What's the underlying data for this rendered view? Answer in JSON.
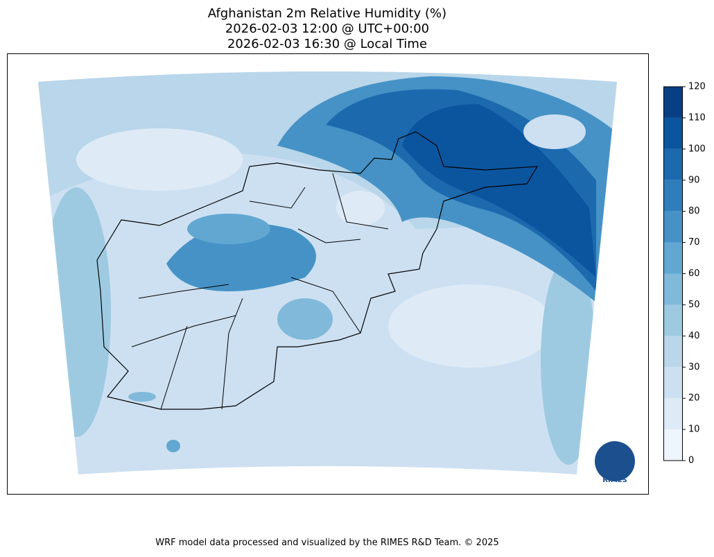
{
  "title": [
    "Afghanistan 2m Relative Humidity (%)",
    "2026-02-03 12:00 @ UTC+00:00",
    "2026-02-03 16:30 @ Local Time"
  ],
  "colorbar": {
    "ticks": [
      0,
      10,
      20,
      30,
      40,
      50,
      60,
      70,
      80,
      90,
      100,
      110,
      120
    ],
    "colors": [
      "#eff5fc",
      "#deebf7",
      "#cde0f1",
      "#b9d6ea",
      "#9ecae1",
      "#81b9da",
      "#62a7d2",
      "#4692c6",
      "#2f7ebb",
      "#1c69ae",
      "#0b559f",
      "#083f84"
    ]
  },
  "logo_text": "RIMES",
  "credit": "WRF model data processed and visualized by the RIMES R&D Team. © 2025"
}
